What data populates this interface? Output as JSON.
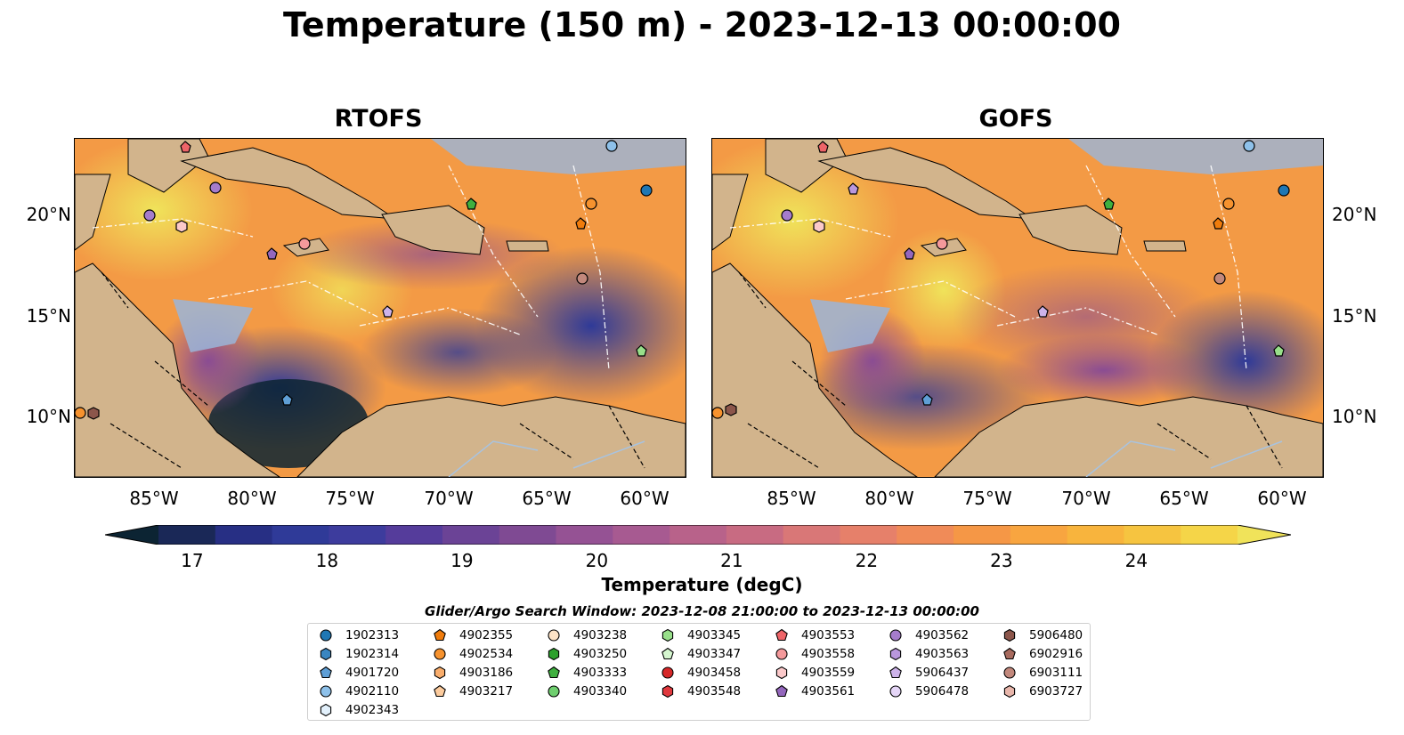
{
  "figure": {
    "title": "Temperature (150 m) - 2023-12-13 00:00:00",
    "panels": [
      {
        "name": "RTOFS"
      },
      {
        "name": "GOFS"
      }
    ],
    "lat_labels": [
      "20°N",
      "15°N",
      "10°N"
    ],
    "lon_labels": [
      "85°W",
      "80°W",
      "75°W",
      "70°W",
      "65°W",
      "60°W"
    ]
  },
  "colorbar": {
    "label": "Temperature (degC)",
    "ticks": [
      "17",
      "18",
      "19",
      "20",
      "21",
      "22",
      "23",
      "24"
    ],
    "range": [
      16.75,
      24.75
    ],
    "step": 0.25,
    "extend": "both",
    "colors": [
      "#0c2433",
      "#1a2857",
      "#272f84",
      "#2f3a98",
      "#3d3c9d",
      "#553c9b",
      "#6b4396",
      "#7f4a93",
      "#955294",
      "#a75a91",
      "#b8628a",
      "#c86b82",
      "#d97777",
      "#e6806a",
      "#f08b58",
      "#f59746",
      "#f8a540",
      "#f8b43d",
      "#f6c440",
      "#f5d548",
      "#f0e35a"
    ]
  },
  "search_window": "Glider/Argo Search Window: 2023-12-08 21:00:00 to 2023-12-13 00:00:00",
  "legend": [
    {
      "id": "1902313",
      "marker": "circle",
      "color": "#1f77b4"
    },
    {
      "id": "1902314",
      "marker": "hexagon",
      "color": "#3a86c1"
    },
    {
      "id": "4901720",
      "marker": "pentagon",
      "color": "#5f9fd6"
    },
    {
      "id": "4902110",
      "marker": "circle",
      "color": "#8ec1ea"
    },
    {
      "id": "4902343",
      "marker": "hexagon",
      "color": "#e3f1fc"
    },
    {
      "id": "4902355",
      "marker": "pentagon",
      "color": "#f07c0c"
    },
    {
      "id": "4902534",
      "marker": "circle",
      "color": "#f6922e"
    },
    {
      "id": "4903186",
      "marker": "hexagon",
      "color": "#f9ad6c"
    },
    {
      "id": "4903217",
      "marker": "pentagon",
      "color": "#fccb9d"
    },
    {
      "id": "4903238",
      "marker": "circle",
      "color": "#fde3c7"
    },
    {
      "id": "4903250",
      "marker": "hexagon",
      "color": "#2ca02c"
    },
    {
      "id": "4903333",
      "marker": "pentagon",
      "color": "#3fb03f"
    },
    {
      "id": "4903340",
      "marker": "circle",
      "color": "#6fcf6f"
    },
    {
      "id": "4903345",
      "marker": "hexagon",
      "color": "#98df8a"
    },
    {
      "id": "4903347",
      "marker": "pentagon",
      "color": "#d5f6cf"
    },
    {
      "id": "4903458",
      "marker": "circle",
      "color": "#d62728"
    },
    {
      "id": "4903548",
      "marker": "hexagon",
      "color": "#e0393e"
    },
    {
      "id": "4903553",
      "marker": "pentagon",
      "color": "#ee6468"
    },
    {
      "id": "4903558",
      "marker": "circle",
      "color": "#f4999b"
    },
    {
      "id": "4903559",
      "marker": "hexagon",
      "color": "#fbc9ca"
    },
    {
      "id": "4903561",
      "marker": "pentagon",
      "color": "#9467bd"
    },
    {
      "id": "4903562",
      "marker": "circle",
      "color": "#a57ccc"
    },
    {
      "id": "4903563",
      "marker": "hexagon",
      "color": "#b997dc"
    },
    {
      "id": "5906437",
      "marker": "pentagon",
      "color": "#cdb3ea"
    },
    {
      "id": "5906478",
      "marker": "circle",
      "color": "#e5d6f7"
    },
    {
      "id": "5906480",
      "marker": "hexagon",
      "color": "#8c564b"
    },
    {
      "id": "6902916",
      "marker": "pentagon",
      "color": "#a76a5e"
    },
    {
      "id": "6903111",
      "marker": "circle",
      "color": "#c2887c"
    },
    {
      "id": "6903727",
      "marker": "hexagon",
      "color": "#e8b6ab"
    }
  ],
  "map_colors": {
    "land": "#d2b48c",
    "shelf": "#9ab5d9",
    "river": "#a8c3e0"
  }
}
